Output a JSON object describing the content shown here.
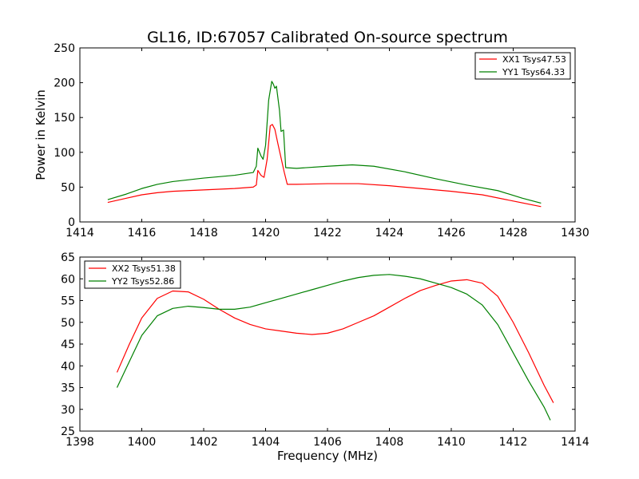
{
  "chart_data": [
    {
      "type": "line",
      "title": "GL16, ID:67057 Calibrated On-source spectrum",
      "xlabel": "",
      "ylabel": "Power in Kelvin",
      "xlim": [
        1414,
        1430
      ],
      "ylim": [
        0,
        250
      ],
      "xticks": [
        1414,
        1416,
        1418,
        1420,
        1422,
        1424,
        1426,
        1428,
        1430
      ],
      "yticks": [
        0,
        50,
        100,
        150,
        200,
        250
      ],
      "legend_position": "top-right",
      "grid": false,
      "series": [
        {
          "name": "XX1 Tsys47.53",
          "color": "#ff0000",
          "x": [
            1414.9,
            1415.5,
            1416,
            1416.5,
            1417,
            1418,
            1419,
            1419.6,
            1419.7,
            1419.75,
            1419.85,
            1419.95,
            1420.05,
            1420.15,
            1420.22,
            1420.3,
            1420.4,
            1420.5,
            1420.6,
            1420.7,
            1421,
            1422,
            1423,
            1424,
            1425,
            1426,
            1427,
            1428,
            1428.9
          ],
          "y": [
            28,
            34,
            39,
            42,
            44,
            46,
            48,
            50,
            53,
            74,
            67,
            64,
            90,
            138,
            140,
            133,
            112,
            92,
            72,
            54,
            54,
            55,
            55,
            52,
            48,
            44,
            39,
            30,
            22
          ]
        },
        {
          "name": "YY1 Tsys64.33",
          "color": "#008000",
          "x": [
            1414.9,
            1415.5,
            1416,
            1416.5,
            1417,
            1418,
            1419,
            1419.6,
            1419.7,
            1419.75,
            1419.85,
            1419.92,
            1420.0,
            1420.1,
            1420.2,
            1420.25,
            1420.3,
            1420.35,
            1420.45,
            1420.5,
            1420.58,
            1420.65,
            1421,
            1422,
            1422.8,
            1423.5,
            1424.5,
            1425.5,
            1426.5,
            1427.5,
            1428.3,
            1428.9
          ],
          "y": [
            32,
            40,
            48,
            54,
            58,
            63,
            67,
            71,
            80,
            106,
            95,
            90,
            110,
            175,
            202,
            198,
            192,
            195,
            160,
            130,
            132,
            78,
            77,
            80,
            82,
            80,
            72,
            62,
            53,
            45,
            34,
            27
          ]
        }
      ]
    },
    {
      "type": "line",
      "title": "",
      "xlabel": "Frequency (MHz)",
      "ylabel": "",
      "xlim": [
        1398,
        1414
      ],
      "ylim": [
        25,
        65
      ],
      "xticks": [
        1398,
        1400,
        1402,
        1404,
        1406,
        1408,
        1410,
        1412,
        1414
      ],
      "yticks": [
        25,
        30,
        35,
        40,
        45,
        50,
        55,
        60,
        65
      ],
      "legend_position": "top-left",
      "grid": false,
      "series": [
        {
          "name": "XX2 Tsys51.38",
          "color": "#ff0000",
          "x": [
            1399.2,
            1399.6,
            1400,
            1400.5,
            1401,
            1401.5,
            1402,
            1402.5,
            1403,
            1403.5,
            1404,
            1404.5,
            1405,
            1405.5,
            1406,
            1406.5,
            1407,
            1407.5,
            1408,
            1408.5,
            1409,
            1409.5,
            1410,
            1410.5,
            1411,
            1411.5,
            1412,
            1412.5,
            1413,
            1413.3
          ],
          "y": [
            38.5,
            45,
            51,
            55.5,
            57.2,
            57,
            55.3,
            53,
            51,
            49.5,
            48.5,
            48,
            47.5,
            47.2,
            47.5,
            48.5,
            50,
            51.5,
            53.5,
            55.5,
            57.3,
            58.5,
            59.5,
            59.8,
            59,
            56,
            50,
            43,
            35.5,
            31.5
          ]
        },
        {
          "name": "YY2 Tsys52.86",
          "color": "#008000",
          "x": [
            1399.2,
            1399.6,
            1400,
            1400.5,
            1401,
            1401.5,
            1402,
            1402.5,
            1403,
            1403.5,
            1404,
            1404.5,
            1405,
            1405.5,
            1406,
            1406.5,
            1407,
            1407.5,
            1408,
            1408.5,
            1409,
            1409.5,
            1410,
            1410.5,
            1411,
            1411.5,
            1412,
            1412.5,
            1413,
            1413.2
          ],
          "y": [
            35,
            41,
            47,
            51.5,
            53.2,
            53.7,
            53.4,
            53,
            53,
            53.5,
            54.5,
            55.5,
            56.5,
            57.5,
            58.5,
            59.5,
            60.3,
            60.8,
            61,
            60.6,
            60,
            59,
            58,
            56.5,
            54,
            49.5,
            43,
            36.5,
            30.5,
            27.5
          ]
        }
      ]
    }
  ]
}
